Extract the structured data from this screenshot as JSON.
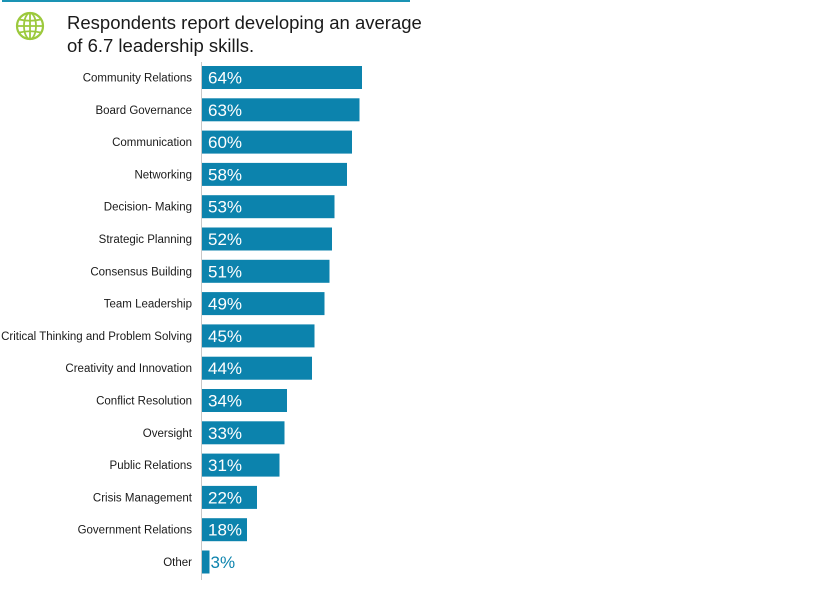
{
  "header": {
    "title": "Respondents report developing an average of 6.7 leadership skills.",
    "icon": "globe-icon"
  },
  "colors": {
    "bar": "#0c83ad",
    "accent_rule": "#1a93b4",
    "globe": "#9cc93d",
    "label_inside": "#ffffff",
    "label_outside": "#0c83ad"
  },
  "chart_data": {
    "type": "bar",
    "orientation": "horizontal",
    "categories": [
      "Community Relations",
      "Board Governance",
      "Communication",
      "Networking",
      "Decision- Making",
      "Strategic Planning",
      "Consensus Building",
      "Team Leadership",
      "Critical Thinking and Problem Solving",
      "Creativity and Innovation",
      "Conflict Resolution",
      "Oversight",
      "Public Relations",
      "Crisis Management",
      "Government Relations",
      "Other"
    ],
    "values": [
      64,
      63,
      60,
      58,
      53,
      52,
      51,
      49,
      45,
      44,
      34,
      33,
      31,
      22,
      18,
      3
    ],
    "value_labels": [
      "64%",
      "63%",
      "60%",
      "58%",
      "53%",
      "52%",
      "51%",
      "49%",
      "45%",
      "44%",
      "34%",
      "33%",
      "31%",
      "22%",
      "18%",
      "3%"
    ],
    "unit": "%",
    "xlim": [
      0,
      100
    ],
    "grid": false,
    "legend": "none"
  }
}
